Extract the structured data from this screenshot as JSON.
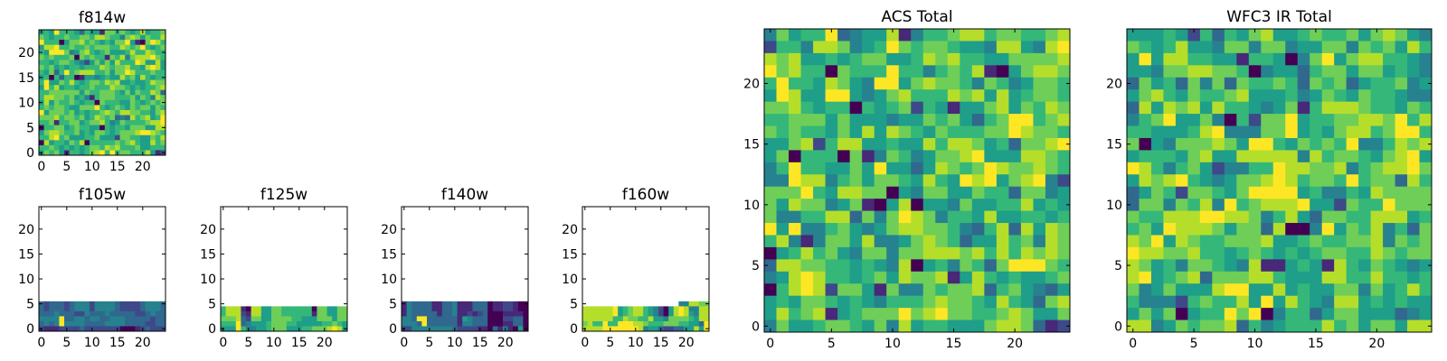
{
  "colormap": [
    "#440154",
    "#482878",
    "#3e4989",
    "#31688e",
    "#26828e",
    "#1f9e89",
    "#35b779",
    "#6ece58",
    "#b5de2b",
    "#fde725"
  ],
  "chart_data": [
    {
      "type": "heatmap",
      "title": "f814w",
      "xlim": [
        -0.5,
        24.5
      ],
      "ylim": [
        -0.5,
        24.5
      ],
      "xticks": [
        "0",
        "5",
        "10",
        "15",
        "20"
      ],
      "yticks": [
        "0",
        "5",
        "10",
        "15",
        "20"
      ],
      "rows_top_y": 24,
      "rows": [
        "5659666536551776765685667",
        "7656676677688766478757668",
        "9666057786765657795107986",
        "5889667667677766876796567",
        "6599974578656755568668766",
        "7676667076766176847888976",
        "6656776542575758666985585",
        "7675656656668767786658985",
        "6573696788866757798666766",
        "5606366015545655867586566",
        "6955768656776878556556877",
        "5968566566766687765656678",
        "6677777757667776575766873",
        "6887767564167776667576487",
        "5857667656607666557656767",
        "6767765577796567657677576",
        "9577767565667876887766578",
        "7778677675687673438678569",
        "6671667756778645766667889",
        "0667756766550656657775588",
        "5788766756577656777899876",
        "6689675556675552776655768",
        "0856657680666667678655867",
        "6676565656776878666755666",
        "5767516656789696776668512"
      ]
    },
    {
      "type": "heatmap",
      "title": "f105w",
      "xlim": [
        -0.5,
        24.5
      ],
      "ylim": [
        -0.5,
        24.5
      ],
      "xticks": [
        "0",
        "5",
        "10",
        "15",
        "20"
      ],
      "yticks": [
        "0",
        "5",
        "10",
        "15",
        "20"
      ],
      "rows_top_y": 5,
      "rows": [
        "3233323444244443222234443",
        "3233323444244443222234443",
        "3334333224333433333223433",
        "4444933443443344433333233",
        "3434944443333444433332233",
        "2111222232222222000123222"
      ]
    },
    {
      "type": "heatmap",
      "title": "f125w",
      "xlim": [
        -0.5,
        24.5
      ],
      "ylim": [
        -0.5,
        24.5
      ],
      "xticks": [
        "0",
        "5",
        "10",
        "15",
        "20"
      ],
      "yticks": [
        "0",
        "5",
        "10",
        "15",
        "20"
      ],
      "rows_top_y": 4,
      "rows": [
        "6888108855776666660775577",
        "6888218855776666661775577",
        "7778327755777766555777577",
        "6669345556777665555566765",
        "5559644556777555667778985"
      ]
    },
    {
      "type": "heatmap",
      "title": "f140w",
      "xlim": [
        -0.5,
        24.5
      ],
      "ylim": [
        -0.5,
        24.5
      ],
      "xticks": [
        "0",
        "5",
        "10",
        "15",
        "20"
      ],
      "yticks": [
        "0",
        "5",
        "10",
        "15",
        "20"
      ],
      "rows_top_y": 5,
      "rows": [
        "1433331133411133301122100",
        "1433331133411133301122100",
        "1433333133411212300011110",
        "4439933333315433300022330",
        "4443933333314433300011330",
        "2244444444322221103141050"
      ]
    },
    {
      "type": "heatmap",
      "title": "f160w",
      "xlim": [
        -0.5,
        24.5
      ],
      "ylim": [
        -0.5,
        24.5
      ],
      "xticks": [
        "0",
        "5",
        "10",
        "15",
        "20"
      ],
      "yticks": [
        "0",
        "5",
        "10",
        "15",
        "20"
      ],
      "rows_top_y": 5,
      "rows": [
        "...................448877",
        "8888889567886542058984488",
        "8888889567886542058985488",
        "8888886687766855477776588",
        "7866966999887666777665539",
        "8888999999984553223355859"
      ]
    },
    {
      "type": "heatmap",
      "title": "ACS Total",
      "xlim": [
        -0.5,
        24.5
      ],
      "ylim": [
        -0.5,
        24.5
      ],
      "xticks": [
        "0",
        "5",
        "10",
        "15",
        "20"
      ],
      "yticks": [
        "0",
        "5",
        "10",
        "15",
        "20"
      ],
      "rows_top_y": 24,
      "rows": [
        "4756693455814667886776678",
        "2664887456976776554885489",
        "8785565677556878665577778",
        "9786607666966467681057887",
        "6966587549957877647645776",
        "5985599545786668785856776",
        "7786566065672651557857687",
        "6677757555455767536799678",
        "7676657585876576667798776",
        "5578268855655868875637789",
        "5706660714764577895558876",
        "4696655759553587679877876",
        "4498846757765865989578942",
        "7779658877054775576637745",
        "7587745710580554755668565",
        "7446688374798746658556656",
        "9594467545788776436838587",
        "6841477584457876355867487",
        "0568675477477888786868787",
        "3887766565480564763799976",
        "4589866567587781586565567",
        "0689827751744767783675435",
        "5657765654666787765865378",
        "5867815677797897766787557",
        "4755677657485665557887312"
      ]
    },
    {
      "type": "heatmap",
      "title": "WFC3 IR Total",
      "xlim": [
        -0.5,
        24.5
      ],
      "ylim": [
        -0.5,
        24.5
      ],
      "xticks": [
        "0",
        "5",
        "10",
        "15",
        "20"
      ],
      "yticks": [
        "0",
        "5",
        "10",
        "15",
        "20"
      ],
      "rows_top_y": 24,
      "rows": [
        "5556526365785567667578754",
        "7656855477477455774767586",
        "5958866551665047957886654",
        "5547788776045536775775654",
        "3756374737667637673566745",
        "5786576678555645765766544",
        "3858785866545716888766576",
        "4679557406277956677887968",
        "6655568944477956578867996",
        "7054777875996576769446878",
        "5666578558888848677657895",
        "9864675244669887784678897",
        "5878965457789867769677386",
        "3576277657999956446587777",
        "3774768496788895527669777",
        "7668889988746853776688856",
        "6759888757738004957684637",
        "8795876677785567667784767",
        "9887786656765656776687677",
        "8756477654811565186576545",
        "8956783777886555886686656",
        "7457555899558565577475686",
        "6444267668595865488565655",
        "5757056697904663577555345",
        "8845767783645666867577588"
      ]
    }
  ]
}
